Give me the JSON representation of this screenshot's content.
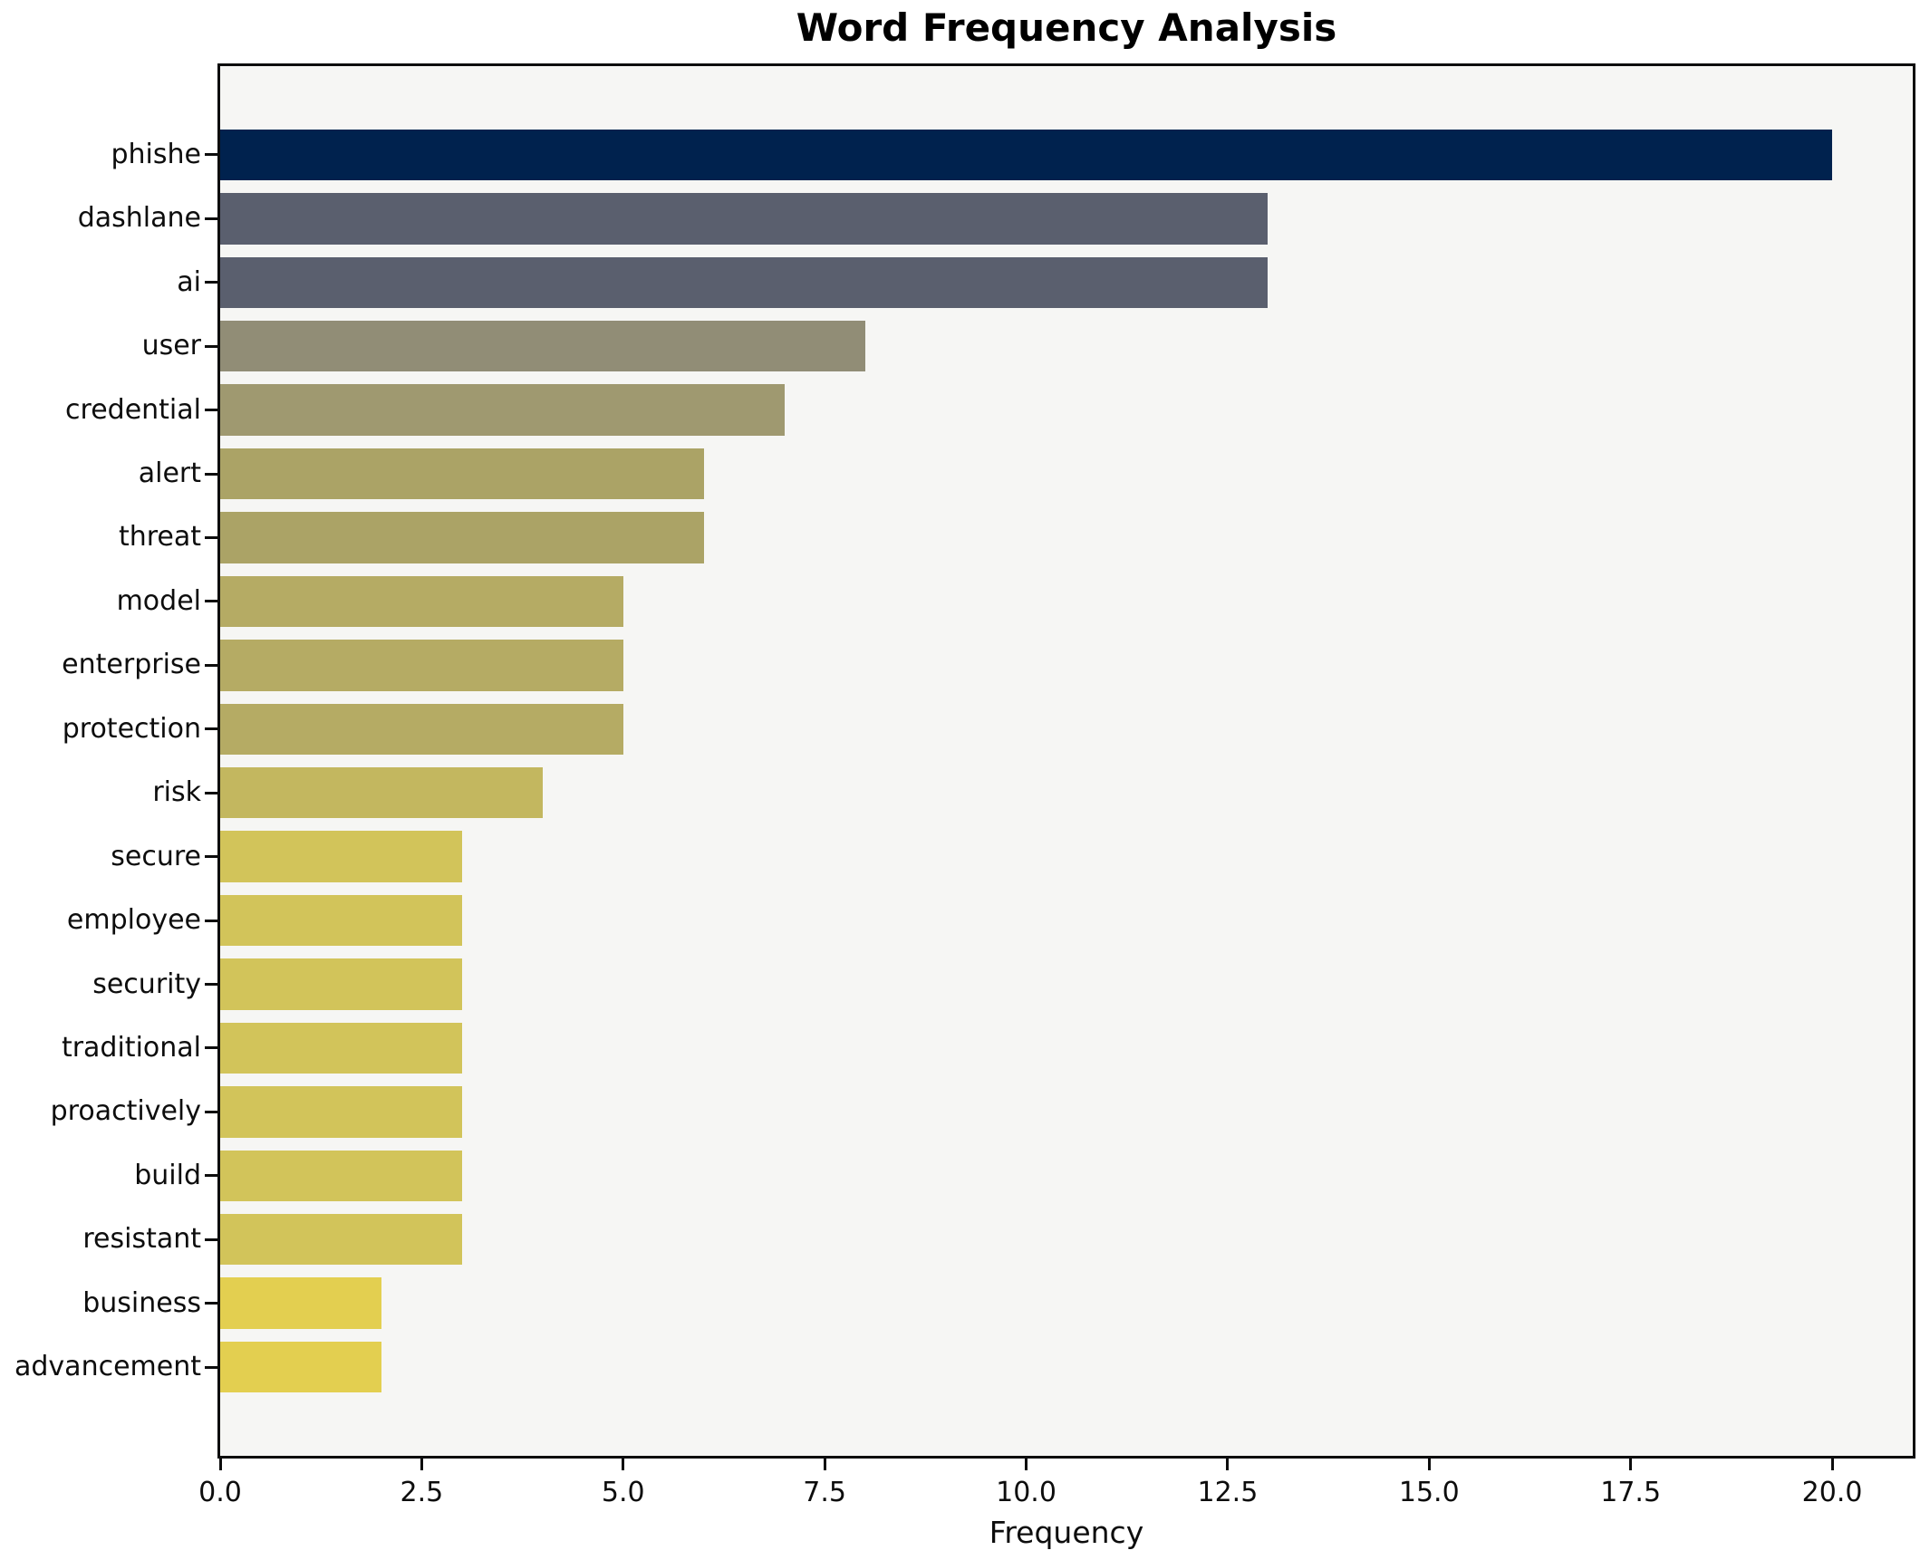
{
  "chart_data": {
    "type": "bar",
    "orientation": "horizontal",
    "title": "Word Frequency Analysis",
    "xlabel": "Frequency",
    "ylabel": "",
    "grid": false,
    "legend": null,
    "plot_background": "#f6f6f4",
    "figure_background": "#ffffff",
    "spine_color": "#0d0d0d",
    "xlim": [
      0,
      21
    ],
    "xticks": [
      0,
      2.5,
      5,
      7.5,
      10,
      12.5,
      15,
      17.5,
      20
    ],
    "xtick_labels": [
      "0.0",
      "2.5",
      "5.0",
      "7.5",
      "10.0",
      "12.5",
      "15.0",
      "17.5",
      "20.0"
    ],
    "categories": [
      "phishe",
      "dashlane",
      "ai",
      "user",
      "credential",
      "alert",
      "threat",
      "model",
      "enterprise",
      "protection",
      "risk",
      "secure",
      "employee",
      "security",
      "traditional",
      "proactively",
      "build",
      "resistant",
      "business",
      "advancement"
    ],
    "values": [
      20,
      13,
      13,
      8,
      7,
      6,
      6,
      5,
      5,
      5,
      4,
      3,
      3,
      3,
      3,
      3,
      3,
      3,
      2,
      2
    ],
    "bar_colors": [
      "#00224e",
      "#5a5f6e",
      "#5a5f6e",
      "#918d76",
      "#9f9970",
      "#aba366",
      "#aba366",
      "#b5ab64",
      "#b5ab64",
      "#b5ab64",
      "#c3b75f",
      "#d2c45a",
      "#d2c45a",
      "#d2c45a",
      "#d2c45a",
      "#d2c45a",
      "#d2c45a",
      "#d2c45a",
      "#e3cf50",
      "#e3cf50"
    ]
  }
}
